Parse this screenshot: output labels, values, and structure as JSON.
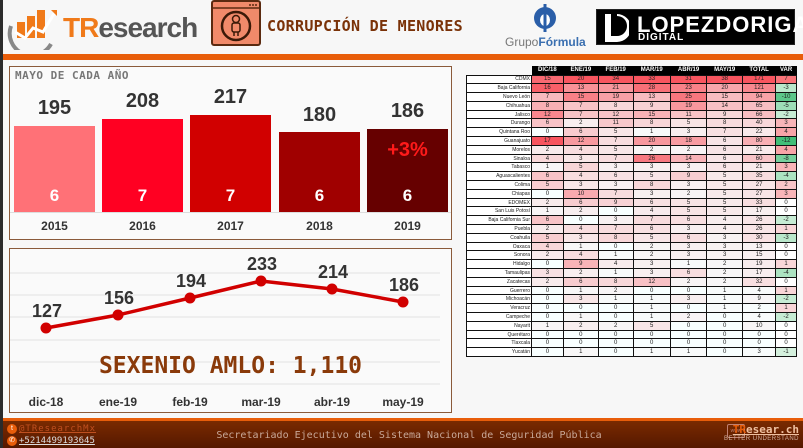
{
  "header": {
    "brand_tr": "TR",
    "brand_rest": "esearch",
    "topic_title": "CORRUPCIÓN DE MENORES",
    "partner1_prefix": "Grupo",
    "partner1_suffix": "Fórmula",
    "partner2_title": "LOPEZDORIGA",
    "partner2_sub": "DIGITAL",
    "accent_color": "#e85d0a"
  },
  "bars_panel": {
    "caption": "MAYO DE CADA AÑO",
    "change_label": "+3%"
  },
  "line_panel": {
    "sexenio_label": "SEXENIO AMLO: 1,110"
  },
  "chart_data": [
    {
      "type": "bar",
      "title": "MAYO DE CADA AÑO",
      "categories": [
        "2015",
        "2016",
        "2017",
        "2018",
        "2019"
      ],
      "values": [
        195,
        208,
        217,
        180,
        186
      ],
      "inner_labels": [
        6,
        7,
        7,
        6,
        6
      ],
      "colors": [
        "#ff7177",
        "#ff0022",
        "#d10000",
        "#a00000",
        "#660000"
      ],
      "annotation": "+3%",
      "xlabel": "",
      "ylabel": ""
    },
    {
      "type": "line",
      "title": "",
      "x": [
        "dic-18",
        "ene-19",
        "feb-19",
        "mar-19",
        "abr-19",
        "may-19"
      ],
      "values": [
        127,
        156,
        194,
        233,
        214,
        186
      ],
      "color": "#d10000",
      "annotation": "SEXENIO AMLO: 1,110",
      "grid": true
    },
    {
      "type": "table",
      "columns": [
        "DIC/18",
        "ENE/19",
        "FEB/19",
        "MAR/19",
        "ABR/19",
        "MAY/19",
        "TOTAL",
        "VAR"
      ],
      "rows": [
        {
          "state": "CDMX",
          "values": [
            15,
            20,
            34,
            33,
            31,
            38,
            171,
            7
          ]
        },
        {
          "state": "Baja California",
          "values": [
            16,
            13,
            21,
            28,
            23,
            20,
            121,
            -3
          ]
        },
        {
          "state": "Nuevo León",
          "values": [
            7,
            15,
            19,
            13,
            25,
            15,
            94,
            -10
          ]
        },
        {
          "state": "Chihuahua",
          "values": [
            8,
            7,
            8,
            9,
            19,
            14,
            65,
            -5
          ]
        },
        {
          "state": "Jalisco",
          "values": [
            12,
            7,
            12,
            15,
            11,
            9,
            66,
            -2
          ]
        },
        {
          "state": "Durango",
          "values": [
            6,
            2,
            11,
            8,
            5,
            8,
            40,
            3
          ]
        },
        {
          "state": "Quintana Roo",
          "values": [
            0,
            6,
            5,
            1,
            3,
            7,
            22,
            4
          ]
        },
        {
          "state": "Guanajuato",
          "values": [
            17,
            12,
            7,
            20,
            18,
            6,
            80,
            -12
          ]
        },
        {
          "state": "Morelos",
          "values": [
            2,
            4,
            5,
            2,
            2,
            6,
            21,
            4
          ]
        },
        {
          "state": "Sinaloa",
          "values": [
            4,
            3,
            7,
            26,
            14,
            6,
            60,
            -8
          ]
        },
        {
          "state": "Tabasco",
          "values": [
            1,
            5,
            3,
            3,
            3,
            6,
            21,
            3
          ]
        },
        {
          "state": "Aguascalientes",
          "values": [
            6,
            4,
            6,
            5,
            9,
            5,
            35,
            -4
          ]
        },
        {
          "state": "Colima",
          "values": [
            5,
            3,
            3,
            8,
            3,
            5,
            27,
            2
          ]
        },
        {
          "state": "Chiapas",
          "values": [
            0,
            10,
            7,
            3,
            2,
            5,
            27,
            3
          ]
        },
        {
          "state": "EDOMEX",
          "values": [
            2,
            6,
            9,
            6,
            5,
            5,
            33,
            0
          ]
        },
        {
          "state": "San Luis Potosí",
          "values": [
            1,
            2,
            0,
            4,
            5,
            5,
            17,
            0
          ]
        },
        {
          "state": "Baja California Sur",
          "values": [
            6,
            0,
            3,
            7,
            6,
            4,
            26,
            -2
          ]
        },
        {
          "state": "Puebla",
          "values": [
            2,
            4,
            7,
            6,
            3,
            4,
            26,
            1
          ]
        },
        {
          "state": "Coahuila",
          "values": [
            5,
            3,
            8,
            5,
            6,
            3,
            30,
            -3
          ]
        },
        {
          "state": "Oaxaca",
          "values": [
            4,
            1,
            0,
            2,
            3,
            3,
            13,
            0
          ]
        },
        {
          "state": "Sonora",
          "values": [
            2,
            4,
            1,
            2,
            3,
            3,
            15,
            0
          ]
        },
        {
          "state": "Hidalgo",
          "values": [
            0,
            9,
            4,
            3,
            1,
            2,
            19,
            1
          ]
        },
        {
          "state": "Tamaulipas",
          "values": [
            3,
            2,
            1,
            3,
            6,
            2,
            17,
            -4
          ]
        },
        {
          "state": "Zacatecas",
          "values": [
            2,
            6,
            8,
            12,
            2,
            2,
            32,
            0
          ]
        },
        {
          "state": "Guerrero",
          "values": [
            0,
            1,
            2,
            0,
            0,
            1,
            4,
            1
          ]
        },
        {
          "state": "Michoacán",
          "values": [
            0,
            3,
            1,
            1,
            3,
            1,
            9,
            -2
          ]
        },
        {
          "state": "Veracruz",
          "values": [
            0,
            0,
            0,
            1,
            0,
            1,
            2,
            1
          ]
        },
        {
          "state": "Campeche",
          "values": [
            0,
            1,
            0,
            1,
            2,
            0,
            4,
            -2
          ]
        },
        {
          "state": "Nayarit",
          "values": [
            1,
            2,
            2,
            5,
            0,
            0,
            10,
            0
          ]
        },
        {
          "state": "Querétaro",
          "values": [
            0,
            0,
            0,
            0,
            0,
            0,
            0,
            0
          ]
        },
        {
          "state": "Tlaxcala",
          "values": [
            0,
            0,
            0,
            0,
            0,
            0,
            0,
            0
          ]
        },
        {
          "state": "Yucatán",
          "values": [
            0,
            1,
            0,
            1,
            1,
            0,
            3,
            -1
          ]
        }
      ]
    }
  ],
  "footer": {
    "twitter_handle": "@TResearchMx",
    "phone": "+5214499193645",
    "source": "Secretariado Ejecutivo del Sistema Nacional de Seguridad Pública",
    "web_tr": "TR",
    "web_rest": "esear.ch",
    "web_tag": "BETTER UNDERSTAND",
    "www_label": "www"
  }
}
